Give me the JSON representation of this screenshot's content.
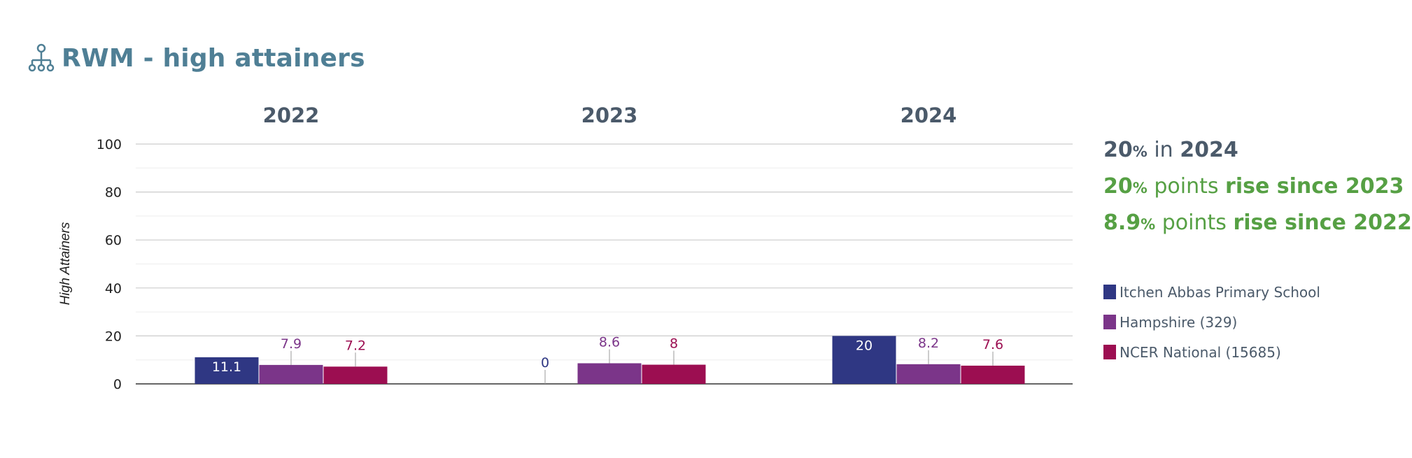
{
  "header": {
    "title": "RWM - high attainers",
    "icon": "hierarchy-icon"
  },
  "colors": {
    "title": "#4f7f95",
    "school": "#2f3783",
    "hampshire": "#7b3589",
    "national": "#9c0e51",
    "rise": "#56a044",
    "text": "#4b5a6a"
  },
  "summary": {
    "current_value": "20",
    "current_unit": "%",
    "current_connector": "in",
    "current_year": "2024",
    "rise1_value": "20",
    "rise1_unit": "%",
    "rise1_word": "points",
    "rise1_text": "rise since 2023",
    "rise2_value": "8.9",
    "rise2_unit": "%",
    "rise2_word": "points",
    "rise2_text": "rise since 2022"
  },
  "legend": [
    {
      "label": "Itchen Abbas Primary School",
      "color": "#2f3783"
    },
    {
      "label": "Hampshire (329)",
      "color": "#7b3589"
    },
    {
      "label": "NCER National (15685)",
      "color": "#9c0e51"
    }
  ],
  "chart_data": {
    "type": "bar",
    "categories": [
      "2022",
      "2023",
      "2024"
    ],
    "ylabel": "High Attainers",
    "ylim": [
      0,
      100
    ],
    "yticks": [
      "0",
      "20",
      "40",
      "60",
      "80",
      "100"
    ],
    "grid": true,
    "legend_position": "right",
    "series": [
      {
        "name": "Itchen Abbas Primary School",
        "values": [
          11.1,
          0,
          20
        ],
        "labels": [
          "11.1",
          "0",
          "20"
        ],
        "color": "#2f3783"
      },
      {
        "name": "Hampshire (329)",
        "values": [
          7.9,
          8.6,
          8.2
        ],
        "labels": [
          "7.9",
          "8.6",
          "8.2"
        ],
        "color": "#7b3589"
      },
      {
        "name": "NCER National (15685)",
        "values": [
          7.2,
          8,
          7.6
        ],
        "labels": [
          "7.2",
          "8",
          "7.6"
        ],
        "color": "#9c0e51"
      }
    ]
  }
}
